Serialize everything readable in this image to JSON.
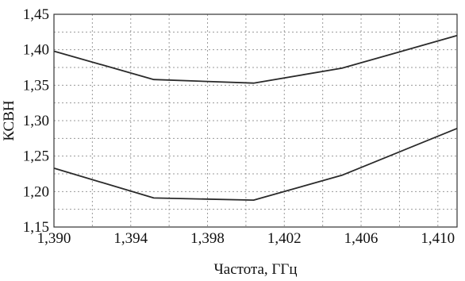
{
  "chart_data": {
    "type": "line",
    "title": "",
    "xlabel": "Частота, ГГц",
    "ylabel": "КСВН",
    "xlim": [
      1.39,
      1.411
    ],
    "ylim": [
      1.15,
      1.45
    ],
    "x_ticks": [
      1.39,
      1.394,
      1.398,
      1.402,
      1.406,
      1.41
    ],
    "x_tick_labels": [
      "1,390",
      "1,394",
      "1,398",
      "1,402",
      "1,406",
      "1,410"
    ],
    "x_minor_grid": [
      1.392,
      1.396,
      1.4,
      1.404,
      1.408
    ],
    "y_ticks": [
      1.15,
      1.2,
      1.25,
      1.3,
      1.35,
      1.4,
      1.45
    ],
    "y_tick_labels": [
      "1,15",
      "1,20",
      "1,25",
      "1,30",
      "1,35",
      "1,40",
      "1,45"
    ],
    "y_minor_grid": [
      1.175,
      1.225,
      1.275,
      1.325,
      1.375,
      1.425
    ],
    "grid": true,
    "series": [
      {
        "x": [
          1.39,
          1.3952,
          1.4004,
          1.405,
          1.411
        ],
        "y": [
          1.398,
          1.358,
          1.353,
          1.374,
          1.42
        ]
      },
      {
        "x": [
          1.39,
          1.3952,
          1.4004,
          1.405,
          1.411
        ],
        "y": [
          1.233,
          1.191,
          1.188,
          1.223,
          1.289
        ]
      }
    ]
  }
}
